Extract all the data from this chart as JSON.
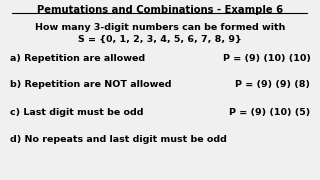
{
  "title": "Pemutations and Combinations - Example 6",
  "subtitle1": "How many 3-digit numbers can be formed with",
  "subtitle2": "S = {0, 1, 2, 3, 4, 5, 6, 7, 8, 9}",
  "line_a": "a) Repetition are allowed",
  "ans_a": "P = (9) (10) (10)",
  "line_b": "b) Repetition are NOT allowed",
  "ans_b": "P = (9) (9) (8)",
  "line_c": "c) Last digit must be odd",
  "ans_c": "P = (9) (10) (5)",
  "line_d": "d) No repeats and last digit must be odd",
  "background_color": "#f0f0f0",
  "text_color": "#000000",
  "title_fontsize": 7.2,
  "body_fontsize": 6.8
}
